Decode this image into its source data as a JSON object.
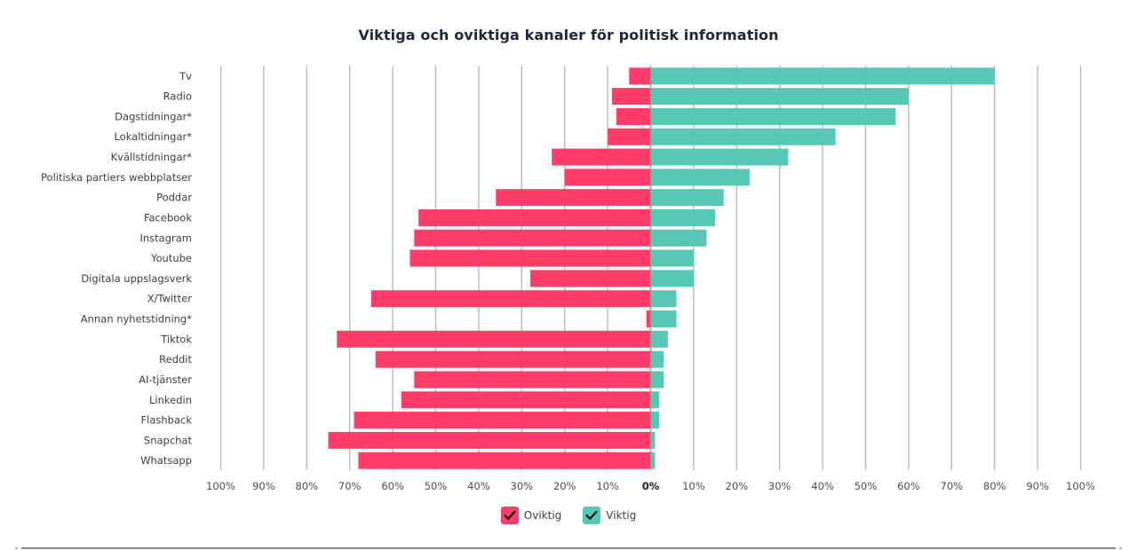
{
  "chart_data": {
    "type": "bar",
    "orientation": "horizontal-diverging",
    "title": "Viktiga och oviktiga kanaler för politisk information",
    "xlabel": "",
    "ylabel": "",
    "xlim": [
      -100,
      100
    ],
    "grid": true,
    "legend_position": "bottom-center",
    "categories": [
      "Tv",
      "Radio",
      "Dagstidningar*",
      "Lokaltidningar*",
      "Kvällstidningar*",
      "Politiska partiers webbplatser",
      "Poddar",
      "Facebook",
      "Instagram",
      "Youtube",
      "Digitala uppslagsverk",
      "X/Twitter",
      "Annan nyhetstidning*",
      "Tiktok",
      "Reddit",
      "AI-tjänster",
      "Linkedin",
      "Flashback",
      "Snapchat",
      "Whatsapp"
    ],
    "series": [
      {
        "name": "Oviktig",
        "side": "left",
        "color": "#FF3D68",
        "values": [
          5,
          9,
          8,
          10,
          23,
          20,
          36,
          54,
          55,
          56,
          28,
          65,
          1,
          73,
          64,
          55,
          58,
          69,
          75,
          68
        ]
      },
      {
        "name": "Viktig",
        "side": "right",
        "color": "#58C8B6",
        "values": [
          80,
          60,
          57,
          43,
          32,
          23,
          17,
          15,
          13,
          10,
          10,
          6,
          6,
          4,
          3,
          3,
          2,
          2,
          1,
          1
        ]
      }
    ],
    "left_tick_labels": [
      "100%",
      "90%",
      "80%",
      "70%",
      "60%",
      "50%",
      "40%",
      "30%",
      "20%",
      "10%",
      "0%"
    ],
    "right_tick_labels": [
      "0%",
      "10%",
      "20%",
      "30%",
      "40%",
      "50%",
      "60%",
      "70%",
      "80%",
      "90%",
      "100%"
    ]
  },
  "legend": {
    "items": [
      {
        "label": "Oviktig",
        "color": "#FF3D68",
        "checked": true,
        "icon": "checkmark-icon"
      },
      {
        "label": "Viktig",
        "color": "#58C8B6",
        "checked": true,
        "icon": "checkmark-icon"
      }
    ]
  },
  "colors": {
    "title": "#1e2836",
    "gridline": "#b5b5b5"
  }
}
